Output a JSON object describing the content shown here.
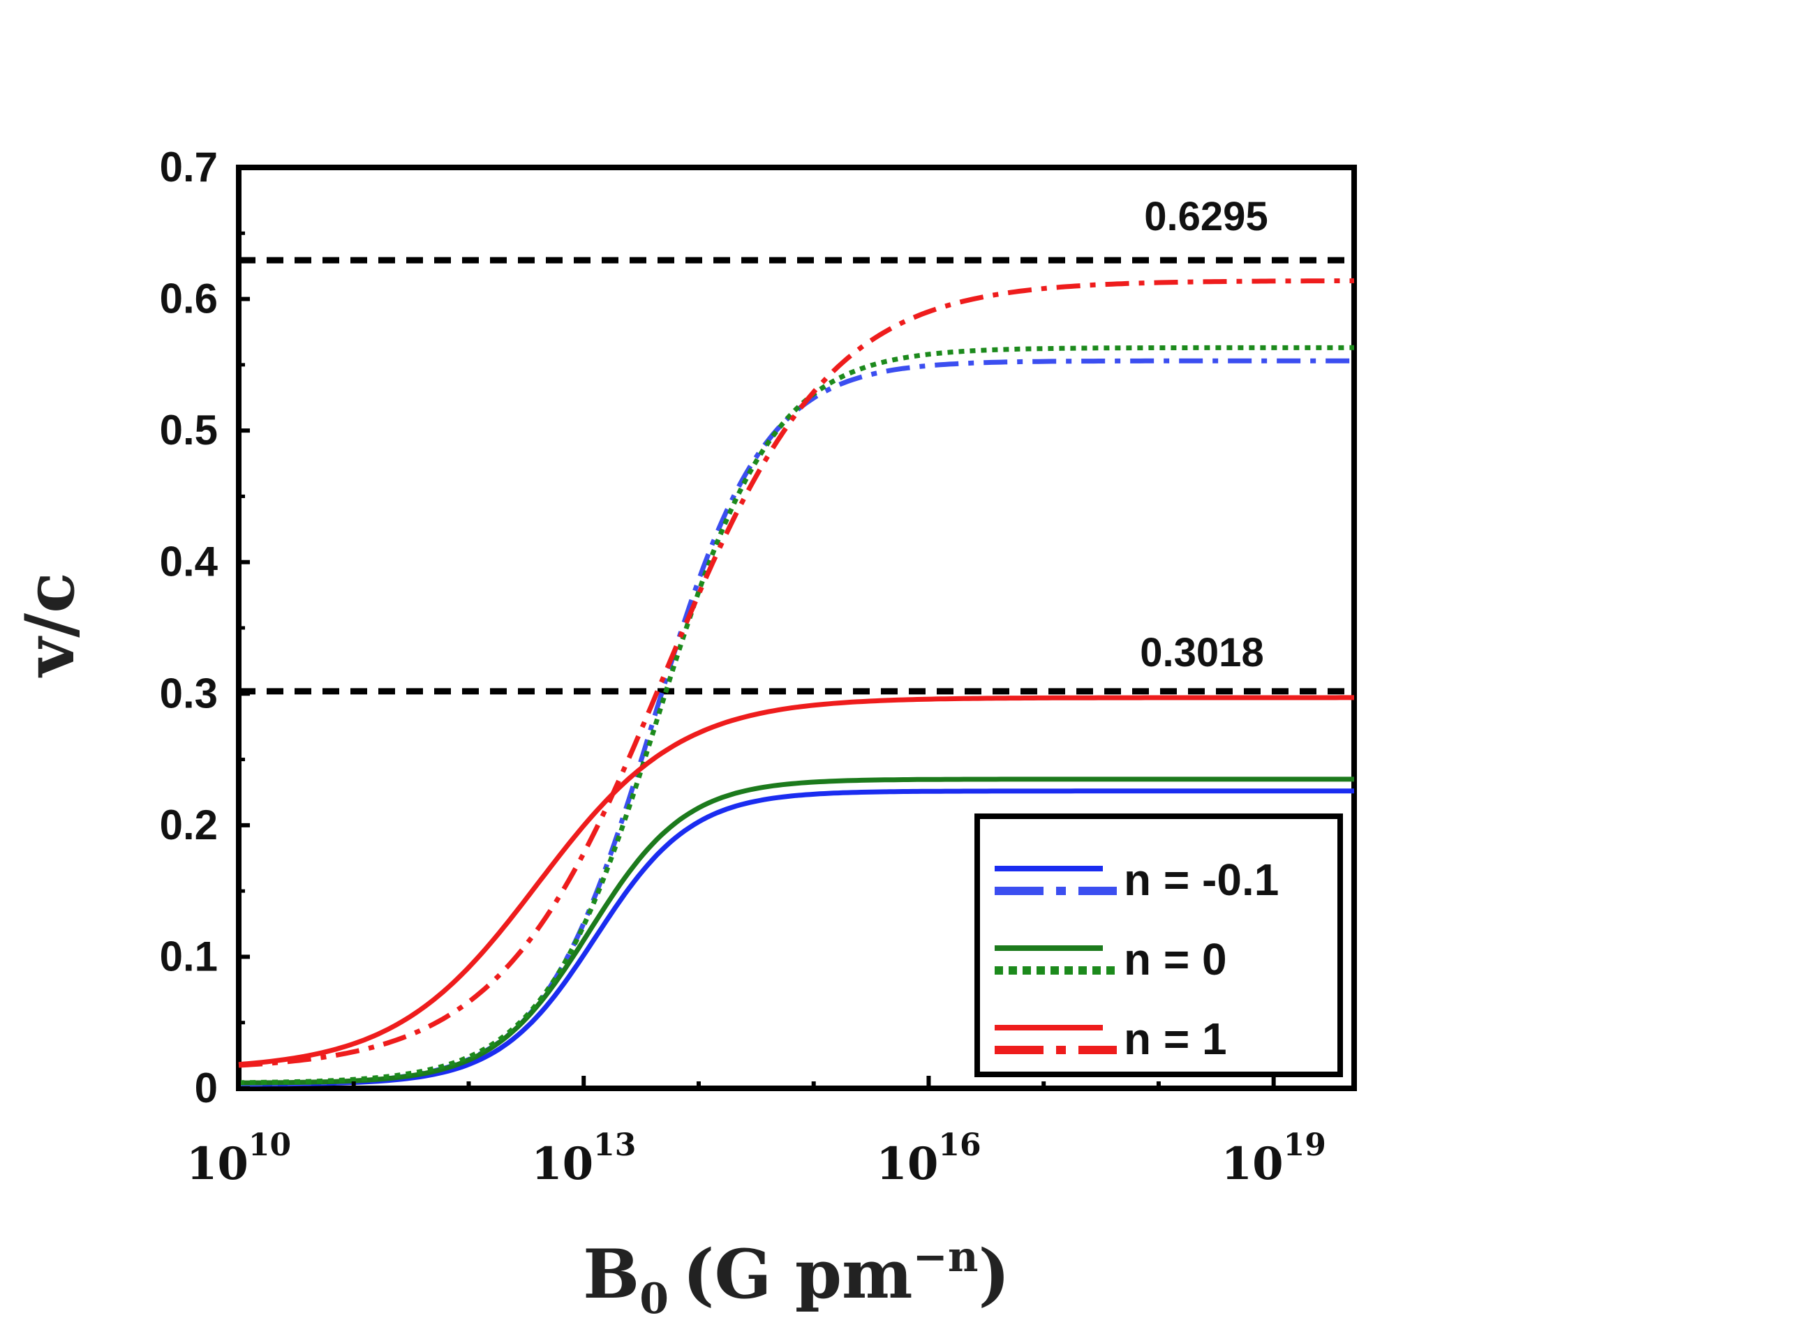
{
  "chart_data": {
    "type": "line",
    "title": "",
    "xlabel": {
      "base": "B",
      "sub": "0",
      "unit_main": "(G pm",
      "unit_sup": "−n",
      "unit_close": ")"
    },
    "ylabel": "v/c",
    "x_scale": "log10",
    "xlim_log10": [
      10,
      19.7
    ],
    "ylim": [
      0,
      0.7
    ],
    "y_ticks": [
      "0",
      "0.1",
      "0.2",
      "0.3",
      "0.4",
      "0.5",
      "0.6",
      "0.7"
    ],
    "x_ticks": [
      {
        "base": "10",
        "exp": "10",
        "log10": 10
      },
      {
        "base": "10",
        "exp": "13",
        "log10": 13
      },
      {
        "base": "10",
        "exp": "16",
        "log10": 16
      },
      {
        "base": "10",
        "exp": "19",
        "log10": 19
      }
    ],
    "reference_lines": [
      {
        "y": 0.6295,
        "label": "0.6295",
        "color": "#000000"
      },
      {
        "y": 0.3018,
        "label": "0.3018",
        "color": "#000000"
      }
    ],
    "series": [
      {
        "name": "n = -0.1 (solid)",
        "color": "#1a2cf0",
        "dash": "solid",
        "low": 0.003,
        "high": 0.226,
        "mid": 13.1,
        "width": 0.42
      },
      {
        "name": "n = -0.1 (dash-dot)",
        "color": "#3b4ef0",
        "dash": "dashdot",
        "low": 0.003,
        "high": 0.553,
        "mid": 13.6,
        "width": 0.48
      },
      {
        "name": "n = 0 (solid)",
        "color": "#1c7a1c",
        "dash": "solid",
        "low": 0.004,
        "high": 0.235,
        "mid": 13.05,
        "width": 0.42
      },
      {
        "name": "n = 0 (dotted)",
        "color": "#1c8a1c",
        "dash": "dotted",
        "low": 0.004,
        "high": 0.563,
        "mid": 13.65,
        "width": 0.5
      },
      {
        "name": "n = 1 (solid)",
        "color": "#ee1c1c",
        "dash": "solid",
        "low": 0.014,
        "high": 0.297,
        "mid": 12.6,
        "width": 0.62
      },
      {
        "name": "n = 1 (dash-dot)",
        "color": "#ee1c1c",
        "dash": "dashdot",
        "low": 0.014,
        "high": 0.614,
        "mid": 13.7,
        "width": 0.72
      }
    ],
    "legend": {
      "position": "bottom-right",
      "entries": [
        {
          "label": "n = -0.1",
          "color_solid": "#1a2cf0",
          "color_alt": "#3b4ef0",
          "alt_style": "dashdot"
        },
        {
          "label": "n = 0",
          "color_solid": "#1c7a1c",
          "color_alt": "#1c8a1c",
          "alt_style": "dotted"
        },
        {
          "label": "n = 1",
          "color_solid": "#ee1c1c",
          "color_alt": "#ee1c1c",
          "alt_style": "dashdot"
        }
      ]
    }
  }
}
